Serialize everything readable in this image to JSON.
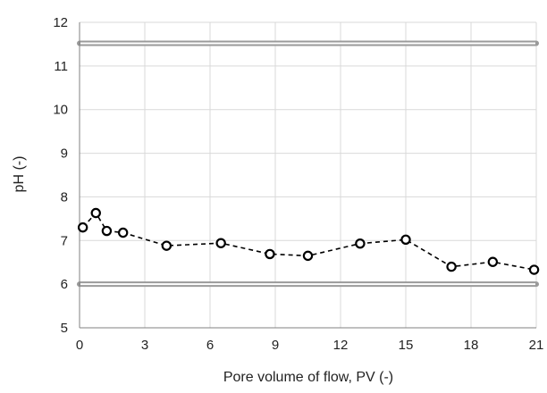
{
  "chart_data": {
    "type": "line",
    "title": "",
    "xlabel": "Pore volume of flow, PV (-)",
    "ylabel": "pH (-)",
    "xlim": [
      0,
      21
    ],
    "ylim": [
      5,
      12
    ],
    "x_ticks": [
      0,
      3,
      6,
      9,
      12,
      15,
      18,
      21
    ],
    "y_ticks": [
      5,
      6,
      7,
      8,
      9,
      10,
      11,
      12
    ],
    "grid": true,
    "legend": "none",
    "series": [
      {
        "line_style": "dashed",
        "marker": "open-circle",
        "color": "#000000",
        "x": [
          0.15,
          0.75,
          1.25,
          2.0,
          4.0,
          6.5,
          8.75,
          10.5,
          12.9,
          15.0,
          17.1,
          19.0,
          20.9
        ],
        "y": [
          7.3,
          7.63,
          7.22,
          7.18,
          6.88,
          6.94,
          6.69,
          6.65,
          6.93,
          7.02,
          6.4,
          6.51,
          6.33
        ]
      }
    ],
    "reference_lines": [
      {
        "axis": "y",
        "value": 11.52,
        "style": "double",
        "color": "#9a9a9a"
      },
      {
        "axis": "y",
        "value": 6.0,
        "style": "double",
        "color": "#9a9a9a"
      }
    ],
    "colors": {
      "grid": "#d9d9d9",
      "axis": "#808080",
      "reference": "#9a9a9a",
      "marker_stroke": "#000000",
      "marker_fill": "#ffffff"
    }
  }
}
